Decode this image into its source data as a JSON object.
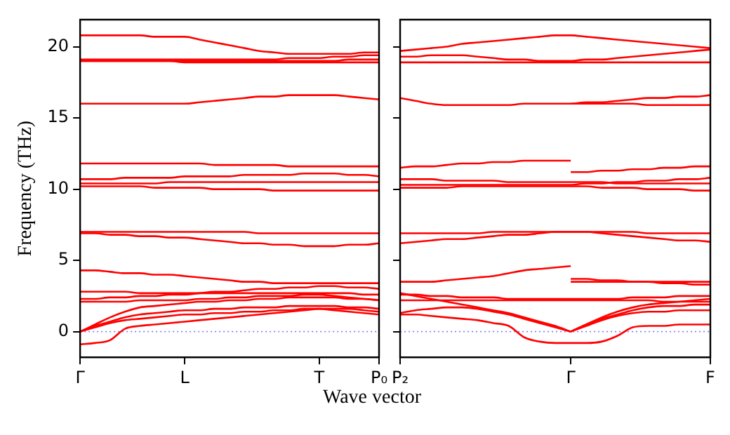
{
  "chart_data": [
    {
      "type": "line",
      "ylabel": "Frequency (THz)",
      "xlabel": "Wave vector",
      "categories": [
        "Γ",
        null,
        null,
        null,
        null,
        null,
        null,
        "L",
        null,
        null,
        null,
        null,
        null,
        null,
        null,
        null,
        "T",
        null,
        null,
        null,
        "P₀"
      ],
      "ylim": [
        -1.8,
        21.9
      ],
      "yticks": [
        0,
        5,
        10,
        15,
        20
      ],
      "grid": false,
      "legend": false,
      "marker": "none",
      "line_style": "solid",
      "ref_lines": [
        {
          "axis": "y",
          "value": 0,
          "color": "#8080ff",
          "line_style": "dotted"
        }
      ],
      "series": [
        {
          "color": "#ff0000",
          "values": [
            20.8,
            20.8,
            20.8,
            20.8,
            20.8,
            20.7,
            20.7,
            20.7,
            20.5,
            20.3,
            20.1,
            19.9,
            19.7,
            19.6,
            19.5,
            19.5,
            19.5,
            19.5,
            19.5,
            19.6,
            19.6
          ]
        },
        {
          "color": "#ff0000",
          "values": [
            19.1,
            19.1,
            19.1,
            19.1,
            19.1,
            19.1,
            19.1,
            19.1,
            19.1,
            19.1,
            19.1,
            19.1,
            19.1,
            19.1,
            19.2,
            19.2,
            19.2,
            19.3,
            19.3,
            19.4,
            19.4
          ]
        },
        {
          "color": "#ff0000",
          "values": [
            19.0,
            19.0,
            19.0,
            19.0,
            19.0,
            19.0,
            19.0,
            19.0,
            19.0,
            19.0,
            19.0,
            19.0,
            19.0,
            19.0,
            19.0,
            19.0,
            19.0,
            19.0,
            19.1,
            19.1,
            19.1
          ]
        },
        {
          "color": "#ff0000",
          "values": [
            19.0,
            19.0,
            19.0,
            19.0,
            19.0,
            19.0,
            19.0,
            18.9,
            18.9,
            18.9,
            18.9,
            18.9,
            18.9,
            18.9,
            18.9,
            18.9,
            18.9,
            18.9,
            18.9,
            18.9,
            18.9
          ]
        },
        {
          "color": "#ff0000",
          "values": [
            16.0,
            16.0,
            16.0,
            16.0,
            16.0,
            16.0,
            16.0,
            16.0,
            16.1,
            16.2,
            16.3,
            16.4,
            16.5,
            16.5,
            16.6,
            16.6,
            16.6,
            16.6,
            16.5,
            16.4,
            16.3
          ]
        },
        {
          "color": "#ff0000",
          "values": [
            11.8,
            11.8,
            11.8,
            11.8,
            11.8,
            11.8,
            11.8,
            11.8,
            11.8,
            11.7,
            11.7,
            11.7,
            11.7,
            11.7,
            11.6,
            11.6,
            11.6,
            11.6,
            11.6,
            11.6,
            11.6
          ]
        },
        {
          "color": "#ff0000",
          "values": [
            10.7,
            10.7,
            10.7,
            10.8,
            10.8,
            10.8,
            10.8,
            10.9,
            10.9,
            10.9,
            10.9,
            11.0,
            11.0,
            11.0,
            11.0,
            11.1,
            11.1,
            11.1,
            11.0,
            11.0,
            10.9
          ]
        },
        {
          "color": "#ff0000",
          "values": [
            10.4,
            10.4,
            10.4,
            10.4,
            10.4,
            10.4,
            10.5,
            10.5,
            10.5,
            10.5,
            10.5,
            10.5,
            10.5,
            10.5,
            10.5,
            10.5,
            10.5,
            10.5,
            10.5,
            10.5,
            10.5
          ]
        },
        {
          "color": "#ff0000",
          "values": [
            10.2,
            10.2,
            10.2,
            10.2,
            10.2,
            10.1,
            10.1,
            10.1,
            10.1,
            10.0,
            10.0,
            10.0,
            10.0,
            9.9,
            9.9,
            9.9,
            9.9,
            9.9,
            9.9,
            9.9,
            9.9
          ]
        },
        {
          "color": "#ff0000",
          "values": [
            7.0,
            7.0,
            7.0,
            7.0,
            7.0,
            7.0,
            7.0,
            7.0,
            7.0,
            7.0,
            7.0,
            7.0,
            6.9,
            6.9,
            6.9,
            6.9,
            6.9,
            6.9,
            6.9,
            6.9,
            6.9
          ]
        },
        {
          "color": "#ff0000",
          "values": [
            6.9,
            6.9,
            6.8,
            6.8,
            6.7,
            6.7,
            6.6,
            6.6,
            6.5,
            6.4,
            6.3,
            6.2,
            6.2,
            6.1,
            6.1,
            6.0,
            6.0,
            6.0,
            6.1,
            6.1,
            6.2
          ]
        },
        {
          "color": "#ff0000",
          "values": [
            4.3,
            4.3,
            4.2,
            4.1,
            4.1,
            4.0,
            4.0,
            3.9,
            3.8,
            3.7,
            3.6,
            3.5,
            3.5,
            3.4,
            3.4,
            3.4,
            3.4,
            3.4,
            3.4,
            3.4,
            3.4
          ]
        },
        {
          "color": "#ff0000",
          "values": [
            2.8,
            2.8,
            2.8,
            2.8,
            2.7,
            2.7,
            2.7,
            2.7,
            2.7,
            2.7,
            2.7,
            2.7,
            2.7,
            2.7,
            2.7,
            2.7,
            2.7,
            2.7,
            2.7,
            2.6,
            2.6
          ]
        },
        {
          "color": "#ff0000",
          "values": [
            2.3,
            2.3,
            2.4,
            2.4,
            2.5,
            2.5,
            2.6,
            2.6,
            2.7,
            2.8,
            2.8,
            2.9,
            3.0,
            3.0,
            3.1,
            3.1,
            3.2,
            3.2,
            3.1,
            3.1,
            3.0
          ]
        },
        {
          "color": "#ff0000",
          "values": [
            2.1,
            2.1,
            2.1,
            2.1,
            2.2,
            2.2,
            2.2,
            2.2,
            2.3,
            2.3,
            2.4,
            2.4,
            2.5,
            2.5,
            2.5,
            2.6,
            2.6,
            2.5,
            2.4,
            2.3,
            2.2
          ]
        },
        {
          "color": "#ff0000",
          "values": [
            0,
            0.5,
            1.0,
            1.4,
            1.7,
            1.8,
            1.9,
            2.0,
            2.1,
            2.1,
            2.2,
            2.2,
            2.3,
            2.3,
            2.4,
            2.4,
            2.4,
            2.4,
            2.3,
            2.3,
            2.2
          ]
        },
        {
          "color": "#ff0000",
          "values": [
            0,
            0.4,
            0.7,
            1.0,
            1.2,
            1.3,
            1.4,
            1.5,
            1.5,
            1.6,
            1.6,
            1.7,
            1.7,
            1.7,
            1.8,
            1.8,
            1.8,
            1.8,
            1.7,
            1.7,
            1.6
          ]
        },
        {
          "color": "#ff0000",
          "values": [
            0,
            0.3,
            0.6,
            0.8,
            0.9,
            1.0,
            1.1,
            1.2,
            1.2,
            1.3,
            1.3,
            1.4,
            1.4,
            1.5,
            1.5,
            1.6,
            1.6,
            1.5,
            1.4,
            1.3,
            1.2
          ]
        },
        {
          "color": "#ff0000",
          "values": [
            -0.9,
            -0.8,
            -0.6,
            0.2,
            0.4,
            0.5,
            0.6,
            0.7,
            0.8,
            0.9,
            1.0,
            1.1,
            1.2,
            1.3,
            1.4,
            1.5,
            1.6,
            1.6,
            1.6,
            1.5,
            1.4
          ]
        }
      ]
    },
    {
      "type": "line",
      "categories": [
        "P₂",
        null,
        null,
        null,
        null,
        null,
        null,
        null,
        null,
        null,
        null,
        "Γ",
        null,
        null,
        null,
        null,
        null,
        null,
        null,
        null,
        "F"
      ],
      "ylim": [
        -1.8,
        21.9
      ],
      "yticks": [
        0,
        5,
        10,
        15,
        20
      ],
      "tick_labels": "x",
      "grid": false,
      "legend": false,
      "marker": "none",
      "line_style": "solid",
      "ref_lines": [
        {
          "axis": "y",
          "value": 0,
          "color": "#8080ff",
          "line_style": "dotted"
        }
      ],
      "series": [
        {
          "color": "#ff0000",
          "values": [
            19.7,
            19.8,
            19.9,
            20.0,
            20.2,
            20.3,
            20.4,
            20.5,
            20.6,
            20.7,
            20.8,
            20.8,
            20.7,
            20.6,
            20.5,
            20.4,
            20.3,
            20.2,
            20.1,
            20.0,
            19.9
          ]
        },
        {
          "color": "#ff0000",
          "values": [
            19.3,
            19.3,
            19.4,
            19.4,
            19.4,
            19.3,
            19.2,
            19.1,
            19.1,
            19.0,
            19.0,
            19.0,
            19.1,
            19.1,
            19.2,
            19.3,
            19.4,
            19.5,
            19.6,
            19.7,
            19.8
          ]
        },
        {
          "color": "#ff0000",
          "values": [
            18.9,
            18.9,
            18.9,
            18.9,
            18.9,
            18.9,
            18.9,
            18.9,
            18.9,
            18.9,
            18.9,
            18.9,
            18.9,
            18.9,
            18.9,
            18.9,
            18.9,
            18.9,
            18.9,
            18.9,
            18.9
          ]
        },
        {
          "color": "#ff0000",
          "values": [
            16.4,
            16.2,
            16.0,
            15.9,
            15.9,
            15.9,
            15.9,
            15.9,
            16.0,
            16.0,
            16.0,
            16.0,
            16.1,
            16.1,
            16.2,
            16.3,
            16.4,
            16.4,
            16.5,
            16.5,
            16.6
          ]
        },
        {
          "color": "#ff0000",
          "values": [
            null,
            null,
            null,
            null,
            null,
            null,
            null,
            null,
            null,
            null,
            null,
            16.0,
            16.0,
            16.0,
            16.0,
            16.0,
            15.9,
            15.9,
            15.9,
            15.9,
            15.9
          ]
        },
        {
          "color": "#ff0000",
          "values": [
            11.5,
            11.6,
            11.6,
            11.7,
            11.8,
            11.8,
            11.9,
            11.9,
            12.0,
            12.0,
            12.0,
            12.0,
            null,
            null,
            null,
            null,
            null,
            null,
            null,
            null,
            null
          ]
        },
        {
          "color": "#ff0000",
          "values": [
            null,
            null,
            null,
            null,
            null,
            null,
            null,
            null,
            null,
            null,
            null,
            11.2,
            11.2,
            11.3,
            11.3,
            11.4,
            11.4,
            11.5,
            11.5,
            11.6,
            11.6
          ]
        },
        {
          "color": "#ff0000",
          "values": [
            10.7,
            10.7,
            10.7,
            10.6,
            10.6,
            10.6,
            10.6,
            10.5,
            10.5,
            10.5,
            10.5,
            10.5,
            10.5,
            10.5,
            10.4,
            10.4,
            10.4,
            10.4,
            10.4,
            10.4,
            10.4
          ]
        },
        {
          "color": "#ff0000",
          "values": [
            10.3,
            10.3,
            10.3,
            10.3,
            10.3,
            10.3,
            10.3,
            10.3,
            10.3,
            10.3,
            10.3,
            10.3,
            10.4,
            10.4,
            10.5,
            10.5,
            10.6,
            10.6,
            10.7,
            10.7,
            10.8
          ]
        },
        {
          "color": "#ff0000",
          "values": [
            10.1,
            10.1,
            10.1,
            10.1,
            10.2,
            10.2,
            10.2,
            10.2,
            10.2,
            10.2,
            10.2,
            10.2,
            10.2,
            10.1,
            10.1,
            10.1,
            10.0,
            10.0,
            10.0,
            9.9,
            9.9
          ]
        },
        {
          "color": "#ff0000",
          "values": [
            6.9,
            6.9,
            6.9,
            6.9,
            6.9,
            6.9,
            7.0,
            7.0,
            7.0,
            7.0,
            7.0,
            7.0,
            7.0,
            7.0,
            7.0,
            7.0,
            6.9,
            6.9,
            6.9,
            6.9,
            6.9
          ]
        },
        {
          "color": "#ff0000",
          "values": [
            6.2,
            6.3,
            6.4,
            6.5,
            6.5,
            6.6,
            6.7,
            6.8,
            6.8,
            6.9,
            7.0,
            7.0,
            7.0,
            6.9,
            6.8,
            6.7,
            6.6,
            6.5,
            6.4,
            6.4,
            6.3
          ]
        },
        {
          "color": "#ff0000",
          "values": [
            3.5,
            3.5,
            3.5,
            3.6,
            3.7,
            3.8,
            3.9,
            4.1,
            4.3,
            4.4,
            4.5,
            4.6,
            null,
            null,
            null,
            null,
            null,
            null,
            null,
            null,
            null
          ]
        },
        {
          "color": "#ff0000",
          "values": [
            null,
            null,
            null,
            null,
            null,
            null,
            null,
            null,
            null,
            null,
            null,
            3.7,
            3.7,
            3.6,
            3.6,
            3.5,
            3.5,
            3.4,
            3.4,
            3.3,
            3.3
          ]
        },
        {
          "color": "#ff0000",
          "values": [
            null,
            null,
            null,
            null,
            null,
            null,
            null,
            null,
            null,
            null,
            null,
            3.5,
            3.5,
            3.5,
            3.5,
            3.5,
            3.5,
            3.5,
            3.5,
            3.5,
            3.5
          ]
        },
        {
          "color": "#ff0000",
          "values": [
            2.6,
            2.6,
            2.5,
            2.5,
            2.4,
            2.4,
            2.4,
            2.3,
            2.3,
            2.3,
            2.3,
            2.3,
            2.3,
            2.3,
            2.3,
            2.4,
            2.4,
            2.4,
            2.5,
            2.5,
            2.5
          ]
        },
        {
          "color": "#ff0000",
          "values": [
            2.2,
            2.2,
            2.2,
            2.2,
            2.2,
            2.2,
            2.2,
            2.2,
            2.2,
            2.2,
            2.2,
            2.2,
            2.2,
            2.2,
            2.2,
            2.2,
            2.2,
            2.1,
            2.1,
            2.1,
            2.1
          ]
        },
        {
          "color": "#ff0000",
          "values": [
            2.7,
            2.5,
            2.3,
            2.1,
            1.9,
            1.7,
            1.5,
            1.3,
            1.0,
            0.7,
            0.4,
            0,
            null,
            null,
            null,
            null,
            null,
            null,
            null,
            null,
            null
          ]
        },
        {
          "color": "#ff0000",
          "values": [
            1.3,
            1.5,
            1.6,
            1.7,
            1.7,
            1.6,
            1.4,
            1.2,
            0.9,
            0.6,
            0.3,
            0,
            null,
            null,
            null,
            null,
            null,
            null,
            null,
            null,
            null
          ]
        },
        {
          "color": "#ff0000",
          "values": [
            1.2,
            1.2,
            1.1,
            1.0,
            0.9,
            0.8,
            0.6,
            0.4,
            -0.4,
            -0.7,
            -0.8,
            -0.8,
            -0.8,
            -0.7,
            -0.3,
            0.3,
            0.4,
            0.4,
            0.5,
            0.5,
            0.5
          ]
        },
        {
          "color": "#ff0000",
          "values": [
            null,
            null,
            null,
            null,
            null,
            null,
            null,
            null,
            null,
            null,
            null,
            0,
            0.4,
            0.8,
            1.1,
            1.3,
            1.4,
            1.4,
            1.5,
            1.5,
            1.5
          ]
        },
        {
          "color": "#ff0000",
          "values": [
            null,
            null,
            null,
            null,
            null,
            null,
            null,
            null,
            null,
            null,
            null,
            0,
            0.5,
            0.9,
            1.2,
            1.5,
            1.7,
            1.8,
            1.8,
            1.9,
            1.9
          ]
        },
        {
          "color": "#ff0000",
          "values": [
            null,
            null,
            null,
            null,
            null,
            null,
            null,
            null,
            null,
            null,
            null,
            0,
            0.5,
            1.0,
            1.4,
            1.7,
            1.9,
            2.0,
            2.1,
            2.2,
            2.3
          ]
        }
      ]
    }
  ]
}
